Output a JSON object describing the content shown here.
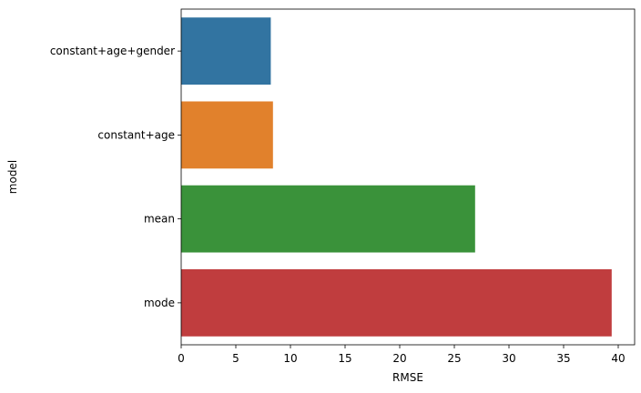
{
  "chart_data": {
    "type": "bar",
    "orientation": "horizontal",
    "title": "",
    "xlabel": "RMSE",
    "ylabel": "model",
    "xlim": [
      0,
      41.5
    ],
    "xticks": [
      0,
      5,
      10,
      15,
      20,
      25,
      30,
      35,
      40
    ],
    "grid": false,
    "categories": [
      "constant+age+gender",
      "constant+age",
      "mean",
      "mode"
    ],
    "values": [
      8.2,
      8.4,
      26.9,
      39.4
    ],
    "colors": [
      "#3274a1",
      "#e1812c",
      "#3a923a",
      "#c03d3e"
    ]
  }
}
